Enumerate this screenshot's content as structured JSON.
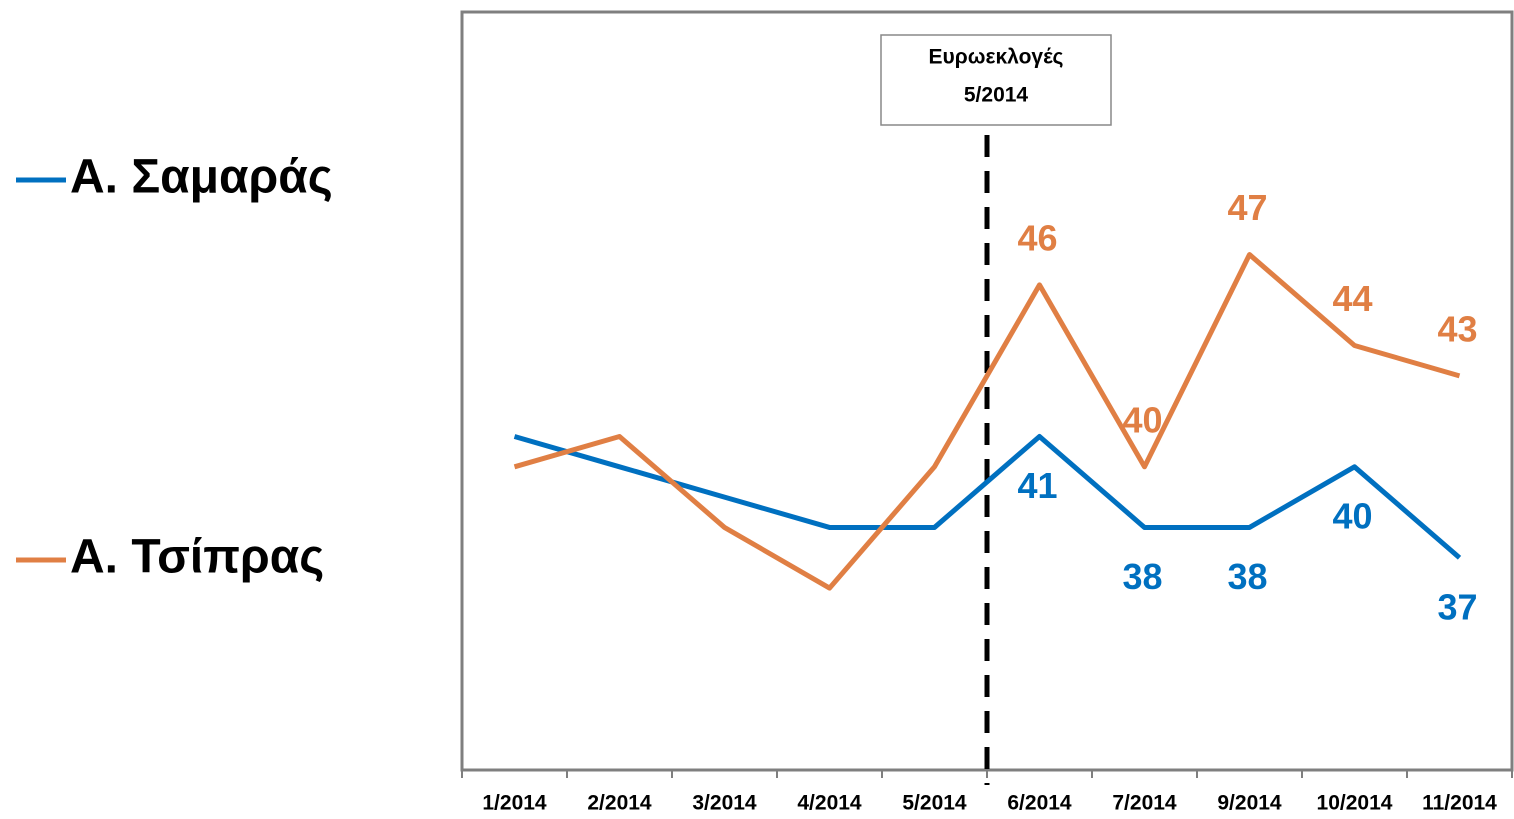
{
  "chart_data": {
    "type": "line",
    "categories": [
      "1/2014",
      "2/2014",
      "3/2014",
      "4/2014",
      "5/2014",
      "6/2014",
      "7/2014",
      "9/2014",
      "10/2014",
      "11/2014"
    ],
    "series": [
      {
        "name": "Α. Σαμαράς",
        "color": "#0070c0",
        "values": [
          41,
          40,
          39,
          38,
          38,
          41,
          38,
          38,
          40,
          37
        ],
        "value_labels": [
          null,
          null,
          null,
          null,
          null,
          "41",
          "38",
          "38",
          "40",
          "37"
        ]
      },
      {
        "name": "Α. Τσίπρας",
        "color": "#e07f44",
        "values": [
          40,
          41,
          38,
          36,
          40,
          46,
          40,
          47,
          44,
          43
        ],
        "value_labels": [
          null,
          null,
          null,
          null,
          null,
          "46",
          "40",
          "47",
          "44",
          "43"
        ]
      }
    ],
    "ylim": [
      30,
      55
    ],
    "annotation": {
      "text": [
        "Ευρωεκλογές",
        "5/2014"
      ]
    },
    "legend": "left"
  }
}
